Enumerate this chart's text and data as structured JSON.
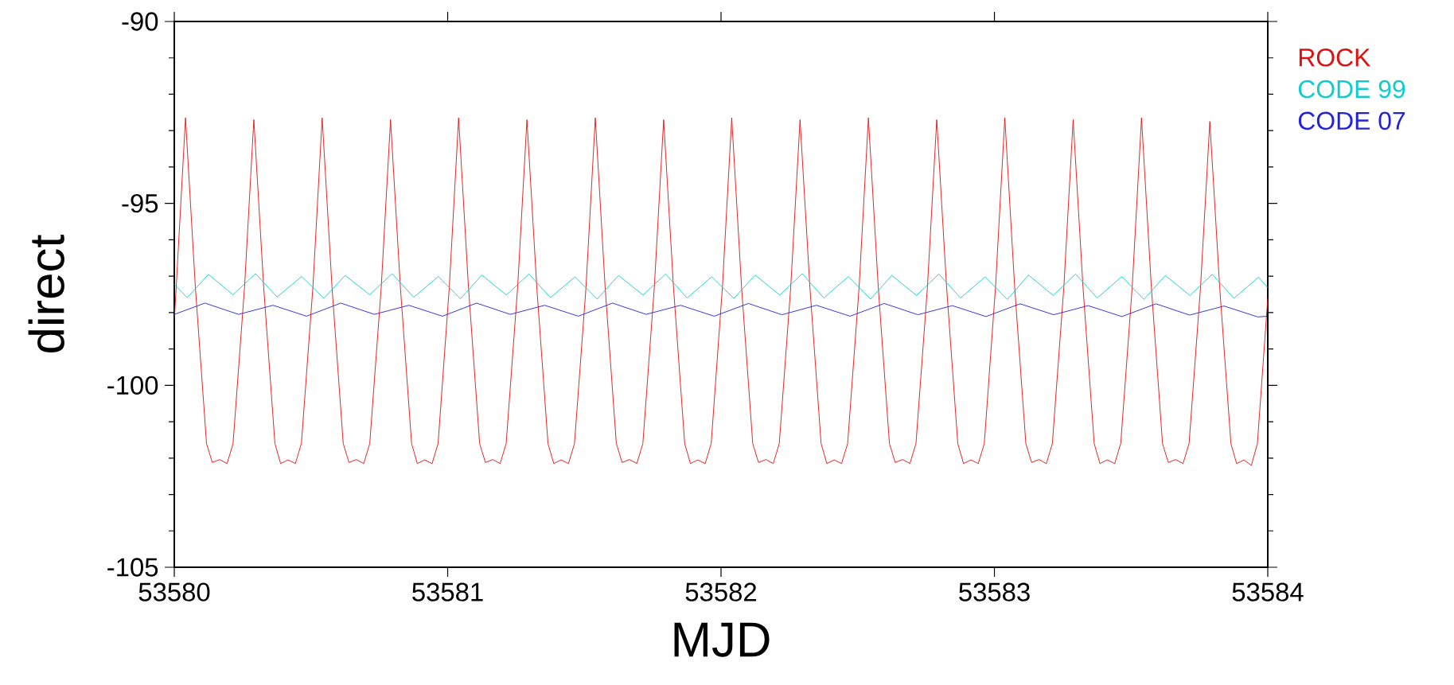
{
  "chart_data": {
    "type": "line",
    "xlabel": "MJD",
    "ylabel": "direct",
    "xlim": [
      53580,
      53584
    ],
    "ylim": [
      -105,
      -90
    ],
    "xticks": [
      53580,
      53581,
      53582,
      53583,
      53584
    ],
    "yticks": [
      -105,
      -100,
      -95,
      -90
    ],
    "series": [
      {
        "name": "ROCK",
        "color": "#dd1111",
        "x": [
          53580.0,
          53580.007,
          53580.041,
          53580.077,
          53580.118,
          53580.139,
          53580.166,
          53580.193,
          53580.215,
          53580.257,
          53580.291,
          53580.327,
          53580.368,
          53580.389,
          53580.416,
          53580.443,
          53580.465,
          53580.507,
          53580.541,
          53580.577,
          53580.618,
          53580.639,
          53580.666,
          53580.693,
          53580.715,
          53580.757,
          53580.791,
          53580.827,
          53580.868,
          53580.889,
          53580.916,
          53580.943,
          53580.965,
          53581.006,
          53581.04,
          53581.076,
          53581.117,
          53581.138,
          53581.165,
          53581.192,
          53581.214,
          53581.256,
          53581.29,
          53581.326,
          53581.367,
          53581.388,
          53581.415,
          53581.442,
          53581.464,
          53581.506,
          53581.54,
          53581.576,
          53581.617,
          53581.638,
          53581.665,
          53581.692,
          53581.714,
          53581.756,
          53581.79,
          53581.826,
          53581.867,
          53581.888,
          53581.915,
          53581.942,
          53581.964,
          53582.005,
          53582.039,
          53582.075,
          53582.116,
          53582.137,
          53582.164,
          53582.191,
          53582.213,
          53582.255,
          53582.289,
          53582.325,
          53582.366,
          53582.387,
          53582.414,
          53582.441,
          53582.463,
          53582.505,
          53582.539,
          53582.575,
          53582.616,
          53582.637,
          53582.664,
          53582.691,
          53582.713,
          53582.755,
          53582.789,
          53582.825,
          53582.866,
          53582.887,
          53582.914,
          53582.941,
          53582.963,
          53583.004,
          53583.038,
          53583.074,
          53583.115,
          53583.136,
          53583.163,
          53583.19,
          53583.212,
          53583.254,
          53583.288,
          53583.324,
          53583.365,
          53583.386,
          53583.413,
          53583.44,
          53583.462,
          53583.504,
          53583.538,
          53583.574,
          53583.615,
          53583.636,
          53583.663,
          53583.69,
          53583.712,
          53583.754,
          53583.788,
          53583.824,
          53583.865,
          53583.886,
          53583.913,
          53583.94,
          53583.962,
          53584.0
        ],
        "values": [
          -98.2,
          -97.3,
          -92.65,
          -97.3,
          -101.6,
          -102.12,
          -102.04,
          -102.15,
          -101.6,
          -97.3,
          -92.7,
          -97.3,
          -101.6,
          -102.15,
          -102.05,
          -102.15,
          -101.6,
          -97.3,
          -92.65,
          -97.3,
          -101.6,
          -102.12,
          -102.04,
          -102.15,
          -101.6,
          -97.3,
          -92.7,
          -97.3,
          -101.6,
          -102.15,
          -102.05,
          -102.15,
          -101.6,
          -97.3,
          -92.65,
          -97.3,
          -101.6,
          -102.12,
          -102.04,
          -102.15,
          -101.6,
          -97.3,
          -92.7,
          -97.3,
          -101.6,
          -102.15,
          -102.05,
          -102.15,
          -101.6,
          -97.3,
          -92.65,
          -97.3,
          -101.6,
          -102.12,
          -102.04,
          -102.15,
          -101.6,
          -97.3,
          -92.7,
          -97.3,
          -101.6,
          -102.15,
          -102.05,
          -102.15,
          -101.6,
          -97.3,
          -92.65,
          -97.3,
          -101.6,
          -102.12,
          -102.04,
          -102.15,
          -101.6,
          -97.3,
          -92.7,
          -97.3,
          -101.6,
          -102.15,
          -102.05,
          -102.15,
          -101.6,
          -97.3,
          -92.65,
          -97.3,
          -101.6,
          -102.12,
          -102.04,
          -102.15,
          -101.6,
          -97.3,
          -92.7,
          -97.3,
          -101.6,
          -102.15,
          -102.05,
          -102.15,
          -101.6,
          -97.3,
          -92.65,
          -97.3,
          -101.6,
          -102.12,
          -102.04,
          -102.15,
          -101.6,
          -97.3,
          -92.7,
          -97.3,
          -101.6,
          -102.15,
          -102.05,
          -102.15,
          -101.6,
          -97.3,
          -92.65,
          -97.3,
          -101.6,
          -102.12,
          -102.04,
          -102.15,
          -101.6,
          -97.3,
          -92.75,
          -97.3,
          -101.6,
          -102.15,
          -102.05,
          -102.2,
          -101.6,
          -97.6
        ]
      },
      {
        "name": "CODE 99",
        "color": "#11cccc",
        "x": [
          53580.0,
          53580.047,
          53580.125,
          53580.215,
          53580.297,
          53580.376,
          53580.466,
          53580.547,
          53580.625,
          53580.715,
          53580.797,
          53580.876,
          53580.966,
          53581.047,
          53581.125,
          53581.215,
          53581.297,
          53581.376,
          53581.466,
          53581.547,
          53581.625,
          53581.715,
          53581.797,
          53581.876,
          53581.966,
          53582.047,
          53582.125,
          53582.215,
          53582.297,
          53582.376,
          53582.466,
          53582.547,
          53582.625,
          53582.715,
          53582.797,
          53582.876,
          53582.966,
          53583.047,
          53583.125,
          53583.215,
          53583.297,
          53583.376,
          53583.466,
          53583.547,
          53583.625,
          53583.715,
          53583.797,
          53583.876,
          53583.966,
          53584.0
        ],
        "values": [
          -97.22,
          -97.59,
          -96.95,
          -97.51,
          -96.93,
          -97.57,
          -97.01,
          -97.61,
          -96.98,
          -97.51,
          -96.93,
          -97.58,
          -97.01,
          -97.62,
          -96.97,
          -97.52,
          -96.94,
          -97.59,
          -97.02,
          -97.63,
          -96.98,
          -97.52,
          -96.94,
          -97.6,
          -97.02,
          -97.61,
          -96.97,
          -97.52,
          -96.93,
          -97.6,
          -97.01,
          -97.63,
          -96.98,
          -97.53,
          -96.94,
          -97.6,
          -97.02,
          -97.64,
          -96.97,
          -97.53,
          -96.94,
          -97.6,
          -97.01,
          -97.64,
          -96.98,
          -97.53,
          -96.95,
          -97.61,
          -97.03,
          -97.32
        ]
      },
      {
        "name": "CODE 07",
        "color": "#2222dd",
        "x": [
          53580.0,
          53580.112,
          53580.235,
          53580.361,
          53580.484,
          53580.609,
          53580.732,
          53580.858,
          53580.981,
          53581.106,
          53581.229,
          53581.355,
          53581.478,
          53581.603,
          53581.726,
          53581.852,
          53581.975,
          53582.1,
          53582.223,
          53582.349,
          53582.472,
          53582.597,
          53582.72,
          53582.846,
          53582.969,
          53583.094,
          53583.217,
          53583.343,
          53583.466,
          53583.591,
          53583.714,
          53583.84,
          53583.963,
          53584.0
        ],
        "values": [
          -98.05,
          -97.74,
          -98.05,
          -97.8,
          -98.1,
          -97.74,
          -98.05,
          -97.8,
          -98.1,
          -97.74,
          -98.05,
          -97.8,
          -98.1,
          -97.74,
          -98.05,
          -97.8,
          -98.1,
          -97.75,
          -98.06,
          -97.8,
          -98.1,
          -97.75,
          -98.06,
          -97.81,
          -98.11,
          -97.76,
          -98.06,
          -97.81,
          -98.11,
          -97.76,
          -98.07,
          -97.82,
          -98.12,
          -98.1
        ]
      }
    ]
  }
}
